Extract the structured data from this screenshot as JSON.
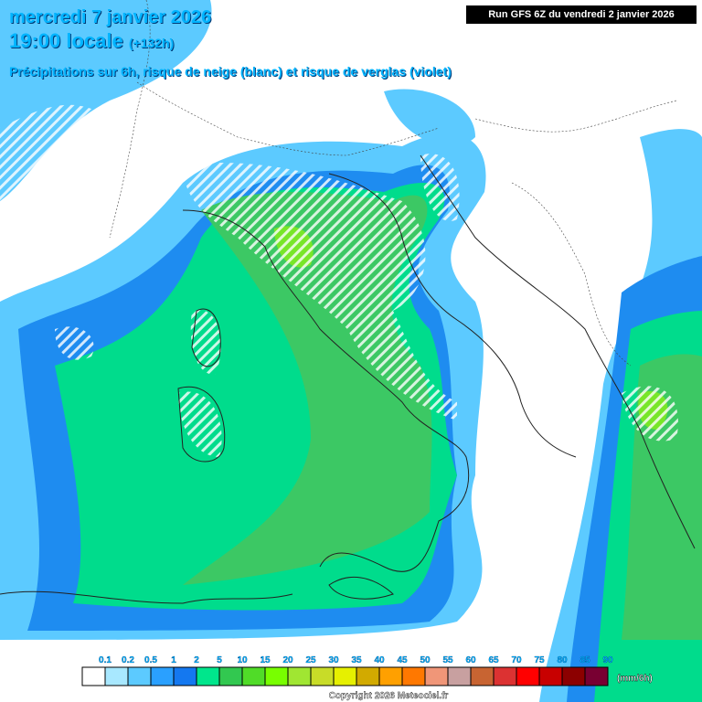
{
  "header": {
    "date": "mercredi 7 janvier 2026",
    "time": "19:00 locale",
    "lead": "(+132h)",
    "subtitle": "Précipitations sur 6h, risque de neige (blanc) et risque de verglas (violet)",
    "run": "Run GFS 6Z du vendredi 2 janvier 2026"
  },
  "legend": {
    "labels": [
      "0.1",
      "0.2",
      "0.5",
      "1",
      "2",
      "5",
      "10",
      "15",
      "20",
      "25",
      "30",
      "35",
      "40",
      "45",
      "50",
      "55",
      "60",
      "65",
      "70",
      "75",
      "80",
      "85",
      "90"
    ],
    "colors": [
      "#ffffff",
      "#a8e8ff",
      "#5ccaff",
      "#2aa0ff",
      "#1478f0",
      "#00e68c",
      "#32c850",
      "#50dc28",
      "#78ff00",
      "#a0e632",
      "#c8dc28",
      "#e6f000",
      "#d2aa00",
      "#ffa000",
      "#ff7800",
      "#f09678",
      "#c8a0a0",
      "#c86432",
      "#dc3232",
      "#ff0000",
      "#c80000",
      "#8c0000",
      "#780032"
    ],
    "unit": "(mm/6h)"
  },
  "footer": {
    "copyright": "Copyright 2026 Meteociel.fr"
  }
}
